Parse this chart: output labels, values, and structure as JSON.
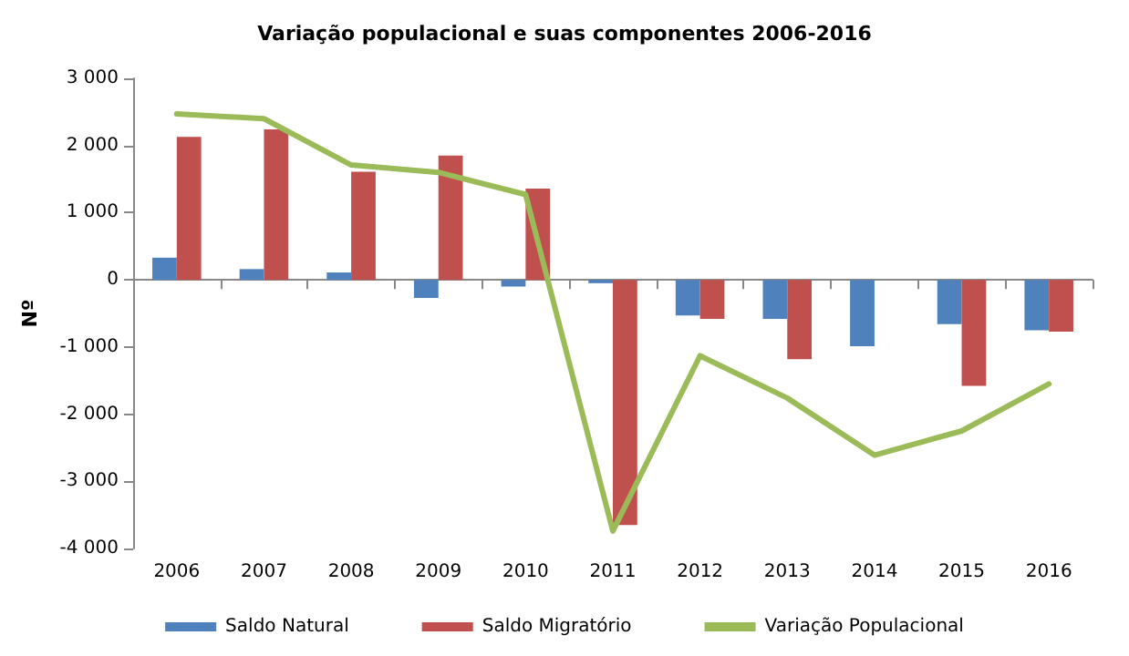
{
  "chart_data": {
    "type": "bar",
    "title": "Variação populacional e suas componentes 2006-2016",
    "ylabel": "Nº",
    "categories": [
      "2006",
      "2007",
      "2008",
      "2009",
      "2010",
      "2011",
      "2012",
      "2013",
      "2014",
      "2015",
      "2016"
    ],
    "series": [
      {
        "name": "Saldo Natural",
        "color": "#4f81bd",
        "values": [
          330,
          160,
          110,
          -270,
          -100,
          -50,
          -530,
          -580,
          -990,
          -660,
          -750
        ]
      },
      {
        "name": "Saldo Migratório",
        "color": "#c0504d",
        "values": [
          2130,
          2240,
          1610,
          1850,
          1360,
          -3650,
          -580,
          -1180,
          null,
          -1580,
          -770
        ]
      },
      {
        "name": "Variação Populacional",
        "type": "line",
        "color": "#9bbb59",
        "values": [
          2470,
          2400,
          1710,
          1600,
          1270,
          -3740,
          -1130,
          -1760,
          -2610,
          -2250,
          -1550
        ]
      }
    ],
    "ylim": [
      -4000,
      3000
    ],
    "yticks": [
      {
        "value": -4000,
        "label": "-4 000"
      },
      {
        "value": -3000,
        "label": "-3 000"
      },
      {
        "value": -2000,
        "label": "-2 000"
      },
      {
        "value": -1000,
        "label": "-1 000"
      },
      {
        "value": 0,
        "label": "0"
      },
      {
        "value": 1000,
        "label": "1 000"
      },
      {
        "value": 2000,
        "label": "2 000"
      },
      {
        "value": 3000,
        "label": "3 000"
      }
    ],
    "legend": "bottom",
    "marker": "none"
  }
}
